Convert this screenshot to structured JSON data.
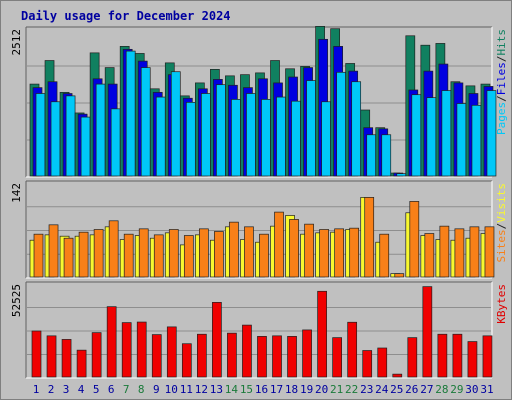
{
  "chart_data": {
    "type": "bar",
    "title": "Daily usage for December 2024",
    "categories": [
      "1",
      "2",
      "3",
      "4",
      "5",
      "6",
      "7",
      "8",
      "9",
      "10",
      "11",
      "12",
      "13",
      "14",
      "15",
      "16",
      "17",
      "18",
      "19",
      "20",
      "21",
      "22",
      "23",
      "24",
      "25",
      "26",
      "27",
      "28",
      "29",
      "30",
      "31"
    ],
    "weekend_days": [
      "7",
      "8",
      "14",
      "15",
      "21",
      "22",
      "28",
      "29"
    ],
    "panels": [
      {
        "id": "hits",
        "max_label": "2512",
        "ymax": 2512,
        "legend": [
          "Pages",
          "/",
          "Files",
          "/",
          "Hits"
        ],
        "legend_colors": [
          "#00c8f8",
          "#202020",
          "#0000e0",
          "#202020",
          "#108060"
        ],
        "series": [
          {
            "name": "Hits",
            "color": "#108060",
            "values": [
              1560,
              1960,
              1420,
              1070,
              2090,
              1840,
              2200,
              2080,
              1480,
              1920,
              1360,
              1580,
              1810,
              1700,
              1720,
              1750,
              1960,
              1820,
              1860,
              2540,
              2500,
              1910,
              1120,
              820,
              50,
              2380,
              2220,
              2250,
              1600,
              1530,
              1560
            ]
          },
          {
            "name": "Files",
            "color": "#0000e0",
            "values": [
              1500,
              1600,
              1400,
              1050,
              1650,
              1560,
              2150,
              1950,
              1420,
              1720,
              1320,
              1480,
              1640,
              1540,
              1500,
              1650,
              1580,
              1680,
              1840,
              2320,
              2200,
              1780,
              820,
              800,
              50,
              1460,
              1780,
              1900,
              1580,
              1400,
              1520
            ]
          },
          {
            "name": "Pages",
            "color": "#00c8f8",
            "values": [
              1400,
              1260,
              1360,
              1000,
              1560,
              1140,
              2120,
              1840,
              1340,
              1770,
              1250,
              1400,
              1550,
              1300,
              1400,
              1300,
              1340,
              1270,
              1620,
              1260,
              1760,
              1600,
              700,
              700,
              40,
              1380,
              1330,
              1450,
              1230,
              1200,
              1450
            ]
          }
        ]
      },
      {
        "id": "visits",
        "max_label": "142",
        "ymax": 142,
        "legend": [
          "Sites",
          "/",
          "Visits"
        ],
        "legend_colors": [
          "#f88018",
          "#202020",
          "#f8f830"
        ],
        "series": [
          {
            "name": "Visits",
            "color": "#f8f830",
            "values": [
              55,
              63,
              61,
              61,
              63,
              75,
              56,
              62,
              58,
              66,
              48,
              63,
              55,
              75,
              56,
              52,
              76,
              92,
              64,
              66,
              67,
              71,
              119,
              52,
              5,
              96,
              62,
              56,
              55,
              58,
              65
            ]
          },
          {
            "name": "Sites",
            "color": "#f88018",
            "values": [
              64,
              78,
              58,
              67,
              71,
              84,
              64,
              72,
              63,
              71,
              62,
              72,
              68,
              82,
              75,
              64,
              97,
              86,
              79,
              71,
              72,
              73,
              119,
              64,
              5,
              113,
              65,
              76,
              72,
              75,
              75
            ]
          }
        ]
      },
      {
        "id": "kbytes",
        "max_label": "52525",
        "ymax": 52525,
        "legend": [
          "KBytes"
        ],
        "legend_colors": [
          "#e00000"
        ],
        "series": [
          {
            "name": "KBytes",
            "color": "#f00000",
            "values": [
              25700,
              23000,
              21000,
              15000,
              24800,
              39300,
              30400,
              30700,
              23700,
              28000,
              18600,
              23900,
              41700,
              24500,
              29000,
              22700,
              23000,
              22700,
              26300,
              47900,
              22000,
              30600,
              14800,
              16200,
              1600,
              22000,
              50500,
              23900,
              23900,
              19800,
              23000
            ]
          }
        ]
      }
    ]
  }
}
